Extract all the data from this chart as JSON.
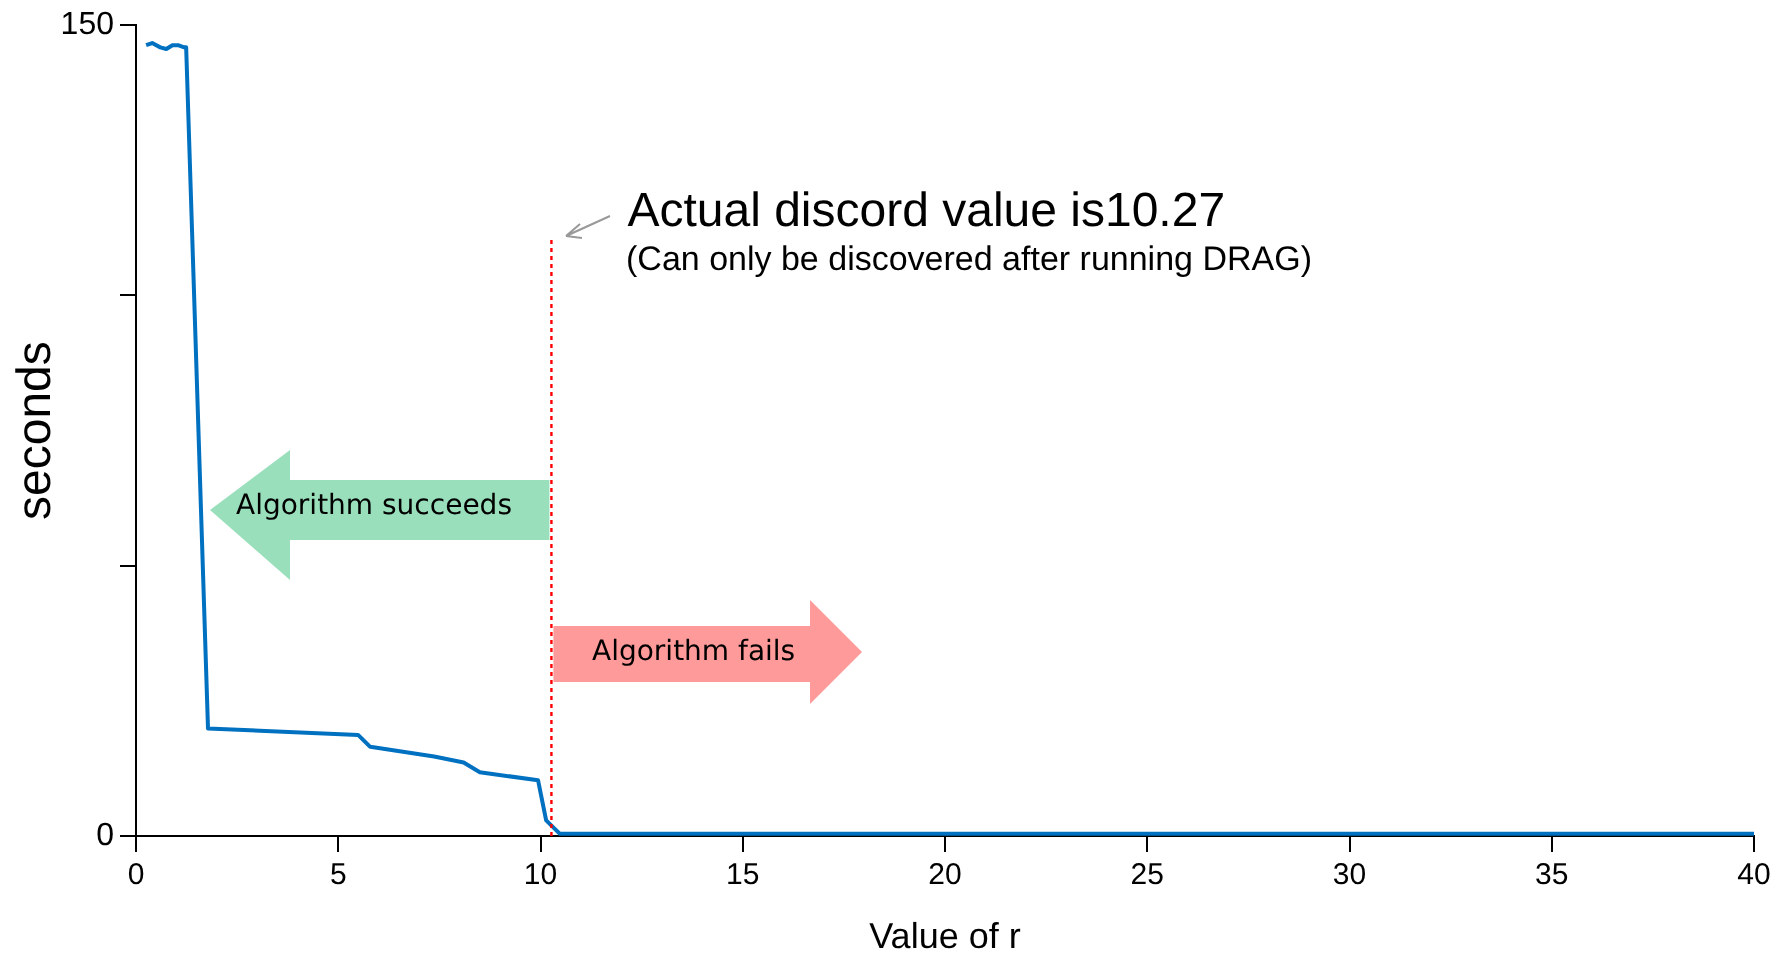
{
  "chart_data": {
    "type": "line",
    "xlabel": "Value of r",
    "ylabel": "seconds",
    "series": [
      {
        "color": "#0070c0",
        "x": [
          0.25,
          0.4,
          0.6,
          0.75,
          0.9,
          1.04,
          1.19,
          1.24,
          1.78,
          5.49,
          5.79,
          7.37,
          8.1,
          8.5,
          9.94,
          10.14,
          10.48,
          40
        ],
        "values": [
          146.3,
          146.7,
          145.9,
          145.6,
          146.3,
          146.3,
          145.9,
          145.9,
          19.9,
          18.7,
          16.5,
          14.7,
          13.6,
          11.8,
          10.3,
          2.9,
          0.4,
          0.4
        ]
      }
    ],
    "xlim": [
      0,
      40
    ],
    "xticks": [
      0,
      5,
      10,
      15,
      20,
      25,
      30,
      35,
      40
    ],
    "ylim": [
      0,
      150
    ],
    "yticks": [
      0,
      {
        "value": 50,
        "label": null
      },
      {
        "value": 100,
        "label": null
      },
      150
    ],
    "ref_lines": [
      {
        "axis": "x",
        "value": 10.27,
        "label": "Actual discord value is10.27",
        "color": "#ff0000",
        "line_style": "dotted"
      }
    ],
    "annotations": [
      "(Can only be discovered after running DRAG)",
      "Algorithm succeeds",
      "Algorithm fails"
    ],
    "grid": false,
    "legend": false,
    "marker": "none",
    "line_style": "solid"
  }
}
